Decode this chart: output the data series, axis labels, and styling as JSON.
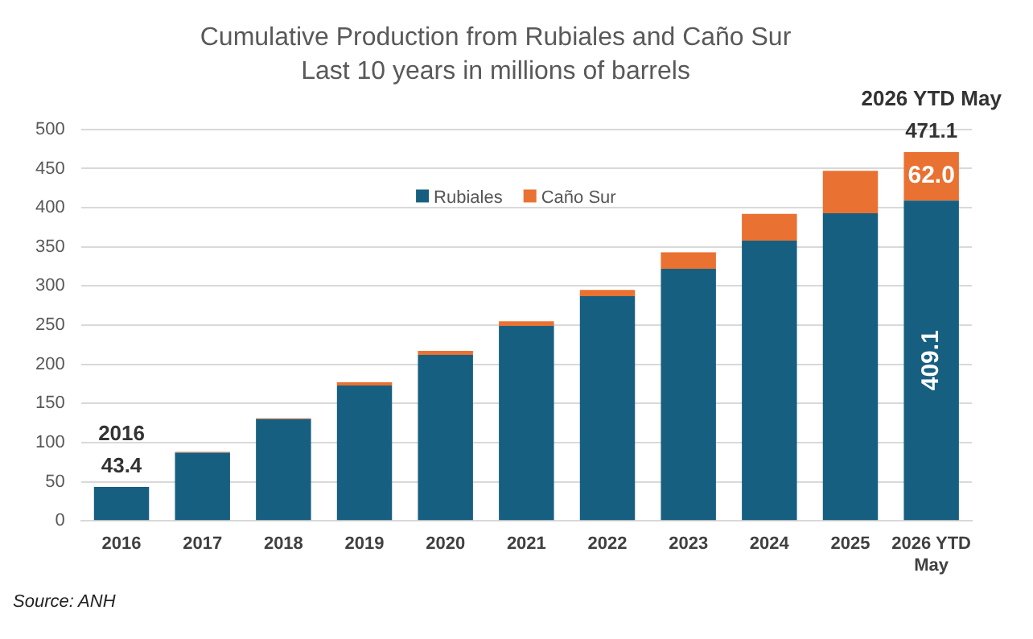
{
  "chart_data": {
    "type": "bar",
    "title": "Cumulative Production from Rubiales and Caño Sur",
    "subtitle": "Last 10 years in millions of barrels",
    "categories": [
      "2016",
      "2017",
      "2018",
      "2019",
      "2020",
      "2021",
      "2022",
      "2023",
      "2024",
      "2025",
      "2026 YTD May"
    ],
    "series": [
      {
        "name": "Rubiales",
        "color": "#175f80",
        "values": [
          43.4,
          87,
          130,
          173,
          212,
          249,
          287,
          322,
          358,
          393,
          409.1
        ],
        "value_labels": [
          null,
          null,
          null,
          null,
          null,
          null,
          null,
          null,
          null,
          null,
          "409.1"
        ]
      },
      {
        "name": "Caño Sur",
        "color": "#e97132",
        "values": [
          0,
          1,
          1,
          4,
          5,
          6,
          8,
          21,
          34,
          54,
          62.0
        ],
        "value_labels": [
          null,
          null,
          null,
          null,
          null,
          null,
          null,
          null,
          null,
          null,
          "62.0"
        ]
      }
    ],
    "stacked": true,
    "totals": [
      "43.4",
      null,
      null,
      null,
      null,
      null,
      null,
      null,
      null,
      null,
      "471.1"
    ],
    "ylim": [
      0,
      500
    ],
    "yticks": [
      0,
      50,
      100,
      150,
      200,
      250,
      300,
      350,
      400,
      450,
      500
    ],
    "grid": "y",
    "legend": "top",
    "annotations": [
      {
        "text": "2016",
        "x": "2016",
        "y": 43.4
      },
      {
        "text": "2026 YTD May",
        "x": "2026 YTD May",
        "y": 471.1
      },
      "Source: ANH"
    ]
  }
}
